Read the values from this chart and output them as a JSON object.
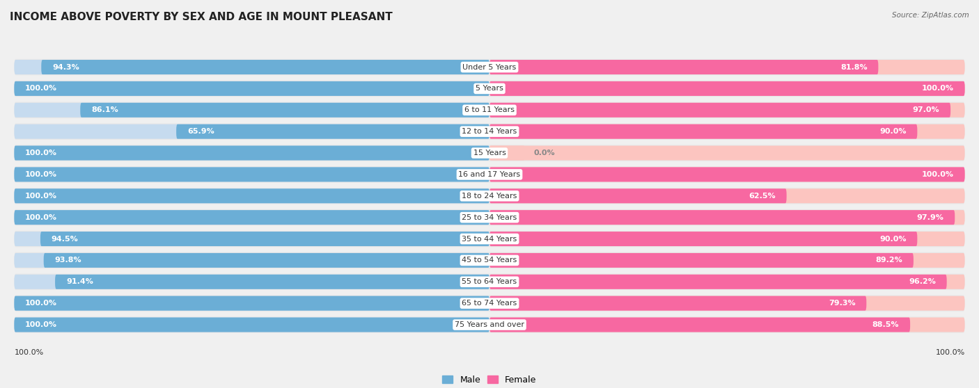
{
  "title": "INCOME ABOVE POVERTY BY SEX AND AGE IN MOUNT PLEASANT",
  "source": "Source: ZipAtlas.com",
  "categories": [
    "Under 5 Years",
    "5 Years",
    "6 to 11 Years",
    "12 to 14 Years",
    "15 Years",
    "16 and 17 Years",
    "18 to 24 Years",
    "25 to 34 Years",
    "35 to 44 Years",
    "45 to 54 Years",
    "55 to 64 Years",
    "65 to 74 Years",
    "75 Years and over"
  ],
  "male_values": [
    94.3,
    100.0,
    86.1,
    65.9,
    100.0,
    100.0,
    100.0,
    100.0,
    94.5,
    93.8,
    91.4,
    100.0,
    100.0
  ],
  "female_values": [
    81.8,
    100.0,
    97.0,
    90.0,
    0.0,
    100.0,
    62.5,
    97.9,
    90.0,
    89.2,
    96.2,
    79.3,
    88.5
  ],
  "male_color": "#6baed6",
  "male_color_light": "#c6dbef",
  "female_color": "#f768a1",
  "female_color_light": "#fcc5c0",
  "background_color": "#f0f0f0",
  "title_fontsize": 11,
  "label_fontsize": 8,
  "value_fontsize": 8,
  "legend_fontsize": 9,
  "max_value": 100.0,
  "bottom_label": "100.0%"
}
